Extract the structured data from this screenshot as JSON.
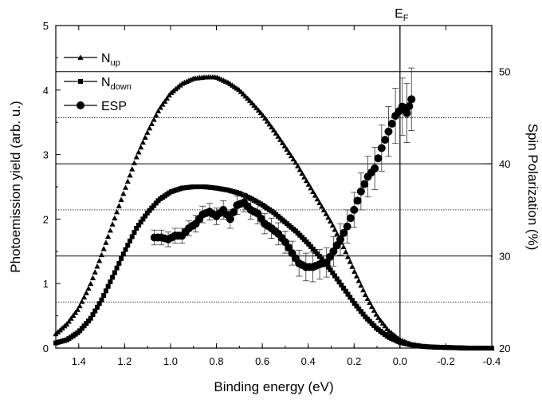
{
  "chart_data": {
    "type": "scatter",
    "xlabel": "Binding energy (eV)",
    "ylabel": "Photoemission yield (arb. u.)",
    "y2label": "Spin Polarization (%)",
    "x_reversed": true,
    "xlim": [
      1.5,
      -0.4
    ],
    "ylim": [
      0,
      5
    ],
    "y2lim": [
      20,
      55
    ],
    "x_ticks": [
      "1.4",
      "1.2",
      "1.0",
      "0.8",
      "0.6",
      "0.4",
      "0.2",
      "0.0",
      "-0.2",
      "-0.4"
    ],
    "y_ticks": [
      "0",
      "1",
      "2",
      "3",
      "4",
      "5"
    ],
    "y2_ticks": [
      "20",
      "30",
      "40",
      "50"
    ],
    "fermi_label": "E",
    "fermi_sub": "F",
    "fermi_x": 0.0,
    "solid_gridlines_pct": [
      30,
      40,
      50
    ],
    "dotted_gridlines_pct": [
      25,
      35,
      45
    ],
    "legend": {
      "position": "top-left",
      "items": [
        {
          "main": "N",
          "sub": "up",
          "marker": "triangle"
        },
        {
          "main": "N",
          "sub": "down",
          "marker": "square"
        },
        {
          "main": "ESP",
          "sub": "",
          "marker": "circle"
        }
      ]
    },
    "series": [
      {
        "id": "n_up",
        "axis": "left",
        "marker": "triangle",
        "x": [
          1.5,
          1.45,
          1.4,
          1.35,
          1.3,
          1.25,
          1.2,
          1.15,
          1.1,
          1.05,
          1.0,
          0.95,
          0.9,
          0.85,
          0.8,
          0.75,
          0.7,
          0.65,
          0.6,
          0.55,
          0.5,
          0.45,
          0.4,
          0.35,
          0.3,
          0.25,
          0.2,
          0.15,
          0.1,
          0.05,
          0.0,
          -0.05,
          -0.1,
          -0.15,
          -0.2,
          -0.25,
          -0.3,
          -0.35,
          -0.4
        ],
        "values": [
          0.22,
          0.38,
          0.62,
          0.98,
          1.45,
          1.95,
          2.45,
          2.95,
          3.35,
          3.7,
          3.95,
          4.1,
          4.18,
          4.2,
          4.2,
          4.12,
          4.0,
          3.82,
          3.62,
          3.38,
          3.12,
          2.85,
          2.55,
          2.25,
          1.95,
          1.6,
          1.2,
          0.82,
          0.5,
          0.27,
          0.13,
          0.06,
          0.03,
          0.015,
          0.01,
          0.005,
          0.0,
          0.0,
          0.0
        ]
      },
      {
        "id": "n_down",
        "axis": "left",
        "marker": "square",
        "x": [
          1.5,
          1.45,
          1.4,
          1.35,
          1.3,
          1.25,
          1.2,
          1.15,
          1.1,
          1.05,
          1.0,
          0.95,
          0.9,
          0.85,
          0.8,
          0.75,
          0.7,
          0.65,
          0.6,
          0.55,
          0.5,
          0.45,
          0.4,
          0.35,
          0.3,
          0.25,
          0.2,
          0.15,
          0.1,
          0.05,
          0.0,
          -0.05,
          -0.1,
          -0.15,
          -0.2,
          -0.25,
          -0.3,
          -0.35,
          -0.4
        ],
        "values": [
          0.08,
          0.13,
          0.25,
          0.45,
          0.75,
          1.12,
          1.5,
          1.85,
          2.1,
          2.3,
          2.42,
          2.48,
          2.5,
          2.5,
          2.48,
          2.45,
          2.4,
          2.32,
          2.22,
          2.1,
          1.95,
          1.8,
          1.62,
          1.42,
          1.2,
          0.95,
          0.7,
          0.48,
          0.3,
          0.17,
          0.09,
          0.05,
          0.025,
          0.015,
          0.01,
          0.005,
          0.0,
          0.0,
          0.0
        ]
      },
      {
        "id": "esp",
        "axis": "right",
        "marker": "circle",
        "x": [
          1.07,
          1.04,
          1.01,
          0.98,
          0.95,
          0.92,
          0.89,
          0.86,
          0.83,
          0.8,
          0.77,
          0.74,
          0.71,
          0.68,
          0.65,
          0.62,
          0.59,
          0.56,
          0.53,
          0.5,
          0.47,
          0.44,
          0.41,
          0.38,
          0.35,
          0.32,
          0.29,
          0.26,
          0.23,
          0.2,
          0.17,
          0.14,
          0.11,
          0.08,
          0.05,
          0.02,
          -0.01,
          -0.03,
          -0.05
        ],
        "values": [
          32.0,
          32.0,
          31.8,
          32.2,
          32.2,
          33.0,
          33.5,
          34.5,
          34.8,
          34.3,
          35.0,
          34.0,
          35.5,
          35.8,
          35.0,
          34.6,
          33.5,
          33.0,
          32.4,
          31.5,
          30.3,
          29.2,
          28.8,
          28.8,
          29.1,
          29.3,
          30.5,
          31.8,
          33.2,
          35.0,
          37.0,
          38.6,
          39.5,
          41.7,
          43.5,
          45.2,
          46.2,
          45.5,
          47.0
        ],
        "error": [
          0.8,
          0.8,
          0.8,
          0.8,
          0.8,
          0.8,
          0.9,
          0.9,
          0.9,
          0.9,
          1.0,
          1.0,
          1.0,
          1.0,
          1.0,
          1.1,
          1.1,
          1.1,
          1.2,
          1.2,
          1.3,
          1.4,
          1.5,
          1.6,
          1.6,
          1.6,
          1.6,
          1.7,
          1.8,
          1.9,
          2.0,
          2.2,
          2.3,
          2.5,
          2.7,
          3.0,
          3.1,
          3.2,
          3.4
        ]
      }
    ]
  }
}
